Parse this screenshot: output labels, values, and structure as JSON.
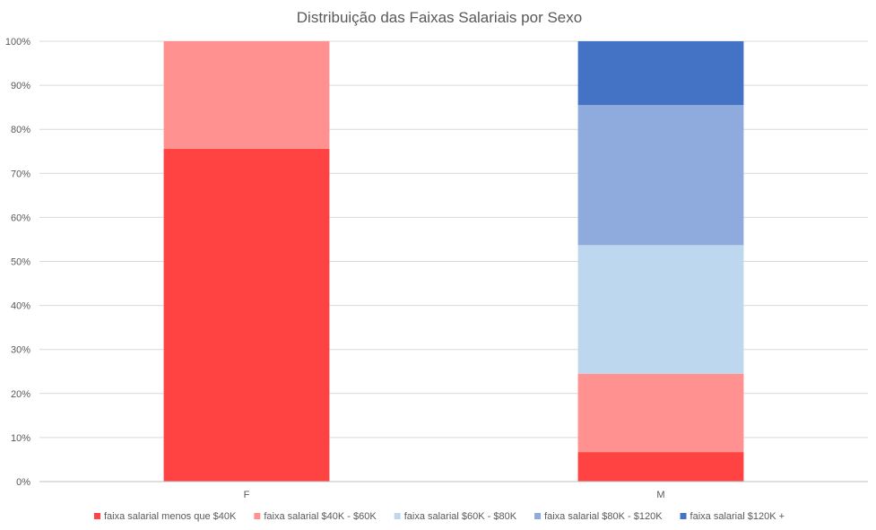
{
  "chart_data": {
    "type": "bar",
    "stacked": true,
    "percent": true,
    "title": "Distribuição das Faixas Salariais por Sexo",
    "xlabel": "",
    "ylabel": "",
    "ylim": [
      0,
      100
    ],
    "yticks": [
      "0%",
      "10%",
      "20%",
      "30%",
      "40%",
      "50%",
      "60%",
      "70%",
      "80%",
      "90%",
      "100%"
    ],
    "categories": [
      "F",
      "M"
    ],
    "grid": true,
    "legend_position": "bottom",
    "series": [
      {
        "name": "faixa salarial menos que $40K",
        "color": "#FF4343",
        "values": [
          75.6,
          6.7
        ]
      },
      {
        "name": "faixa salarial $40K - $60K",
        "color": "#FF9191",
        "values": [
          24.4,
          17.8
        ]
      },
      {
        "name": "faixa salarial $60K - $80K",
        "color": "#BDD7EE",
        "values": [
          0,
          29.2
        ]
      },
      {
        "name": "faixa salarial $80K - $120K",
        "color": "#8FAADC",
        "values": [
          0,
          31.8
        ]
      },
      {
        "name": "faixa salarial $120K +",
        "color": "#4472C4",
        "values": [
          0,
          14.5
        ]
      }
    ]
  }
}
